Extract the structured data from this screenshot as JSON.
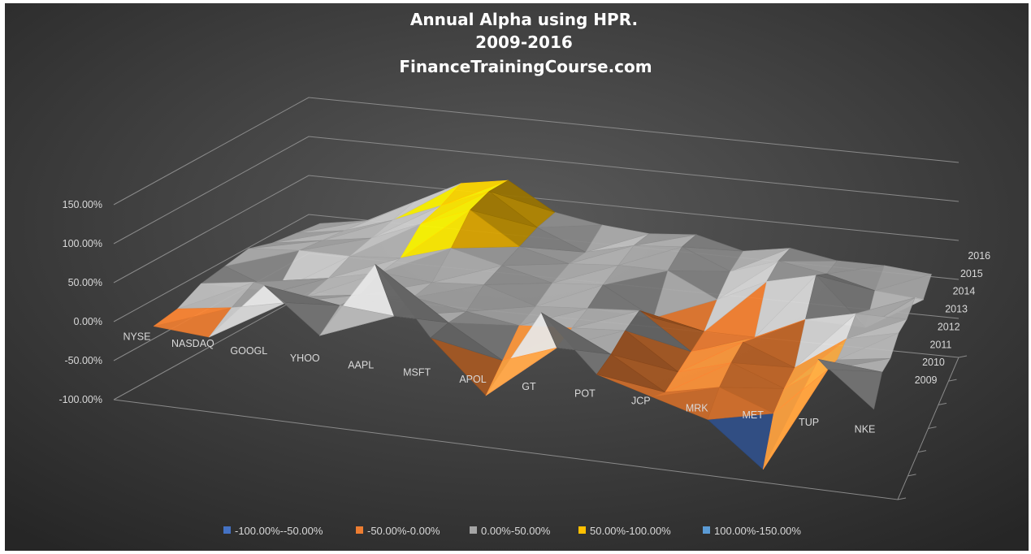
{
  "chart_data": {
    "type": "surface",
    "title_lines": [
      "Annual Alpha using HPR.",
      "2009-2016",
      "FinanceTrainingCourse.com"
    ],
    "z_axis": {
      "min": -1.0,
      "max": 1.5,
      "step": 0.5,
      "tick_labels": [
        "-100.00%",
        "-50.00%",
        "0.00%",
        "50.00%",
        "100.00%",
        "150.00%"
      ]
    },
    "tickers": [
      "NYSE",
      "NASDAQ",
      "GOOGL",
      "YHOO",
      "AAPL",
      "MSFT",
      "APOL",
      "GT",
      "POT",
      "JCP",
      "MRK",
      "MET",
      "TUP",
      "NKE"
    ],
    "years": [
      "2009",
      "2010",
      "2011",
      "2012",
      "2013",
      "2014",
      "2015",
      "2016"
    ],
    "values": [
      [
        -0.1,
        -0.05,
        0.1,
        0.15,
        0.2,
        0.1,
        0.05,
        0.0
      ],
      [
        -0.15,
        0.05,
        0.2,
        -0.1,
        0.25,
        0.2,
        0.15,
        0.1
      ],
      [
        0.6,
        0.2,
        0.1,
        0.15,
        0.25,
        0.3,
        0.35,
        0.4
      ],
      [
        0.05,
        0.25,
        0.2,
        0.3,
        0.3,
        0.55,
        0.6,
        0.7
      ],
      [
        1.05,
        0.2,
        0.25,
        0.25,
        0.5,
        0.8,
        0.85,
        0.8
      ],
      [
        0.2,
        0.2,
        0.15,
        0.3,
        0.35,
        0.4,
        0.45,
        0.45
      ],
      [
        -0.45,
        -0.2,
        0.05,
        0.1,
        0.2,
        0.25,
        0.2,
        0.35
      ],
      [
        0.7,
        0.05,
        0.1,
        0.15,
        0.25,
        0.3,
        0.35,
        0.3
      ],
      [
        0.0,
        0.05,
        0.15,
        0.2,
        -0.1,
        0.3,
        0.4,
        0.35
      ],
      [
        -0.2,
        -0.35,
        -0.3,
        -0.25,
        -0.2,
        0.0,
        0.15,
        0.2
      ],
      [
        -0.4,
        -0.2,
        -0.1,
        -0.05,
        -0.2,
        0.3,
        0.35,
        0.3
      ],
      [
        -0.95,
        -0.45,
        -0.35,
        -0.3,
        0.1,
        0.45,
        0.25,
        0.2
      ],
      [
        0.55,
        0.2,
        0.1,
        0.15,
        0.25,
        -0.15,
        0.1,
        0.2
      ],
      [
        0.0,
        0.25,
        0.2,
        0.3,
        0.25,
        0.3,
        0.05,
        0.15
      ]
    ],
    "bands": [
      {
        "label": "-100.00%--50.00%",
        "min": -1.0,
        "max": -0.5,
        "color": "#4472c4"
      },
      {
        "label": "-50.00%-0.00%",
        "min": -0.5,
        "max": 0.0,
        "color": "#ed7d31"
      },
      {
        "label": "0.00%-50.00%",
        "min": 0.0,
        "max": 0.5,
        "color": "#a5a5a5"
      },
      {
        "label": "50.00%-100.00%",
        "min": 0.5,
        "max": 1.0,
        "color": "#ffc000"
      },
      {
        "label": "100.00%-150.00%",
        "min": 1.0,
        "max": 1.5,
        "color": "#5b9bd5"
      }
    ],
    "legend_position": "bottom",
    "background": "#404040"
  }
}
